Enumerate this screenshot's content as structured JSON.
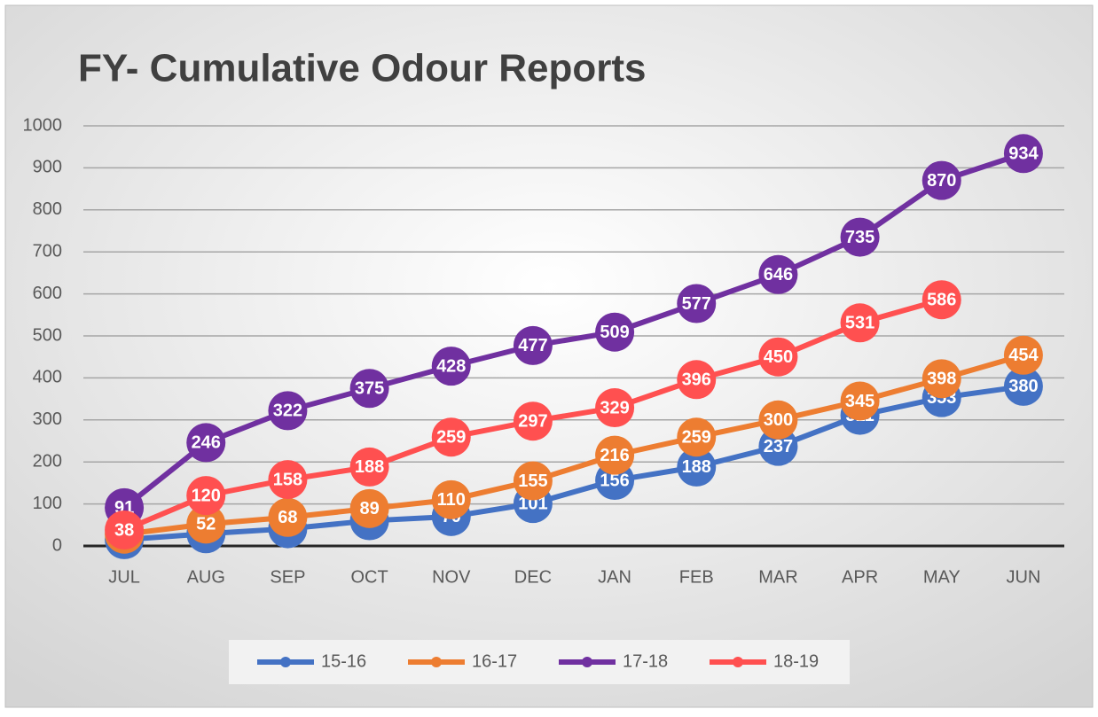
{
  "chart_data": {
    "type": "line",
    "title": "FY- Cumulative Odour Reports",
    "categories": [
      "JUL",
      "AUG",
      "SEP",
      "OCT",
      "NOV",
      "DEC",
      "JAN",
      "FEB",
      "MAR",
      "APR",
      "MAY",
      "JUN"
    ],
    "series": [
      {
        "name": "15-16",
        "color": "#4472c4",
        "values": [
          15,
          29,
          41,
          60,
          70,
          101,
          156,
          188,
          237,
          311,
          353,
          380
        ]
      },
      {
        "name": "16-17",
        "color": "#ed7d31",
        "values": [
          28,
          52,
          68,
          89,
          110,
          155,
          216,
          259,
          300,
          345,
          398,
          454
        ]
      },
      {
        "name": "17-18",
        "color": "#7030a0",
        "values": [
          91,
          246,
          322,
          375,
          428,
          477,
          509,
          577,
          646,
          735,
          870,
          934
        ]
      },
      {
        "name": "18-19",
        "color": "#ff5050",
        "values": [
          38,
          120,
          158,
          188,
          259,
          297,
          329,
          396,
          450,
          531,
          586,
          null
        ]
      }
    ],
    "ylim": [
      0,
      1000
    ],
    "yticks": [
      0,
      100,
      200,
      300,
      400,
      500,
      600,
      700,
      800,
      900,
      1000
    ],
    "grid": true,
    "legend": "bottom"
  }
}
